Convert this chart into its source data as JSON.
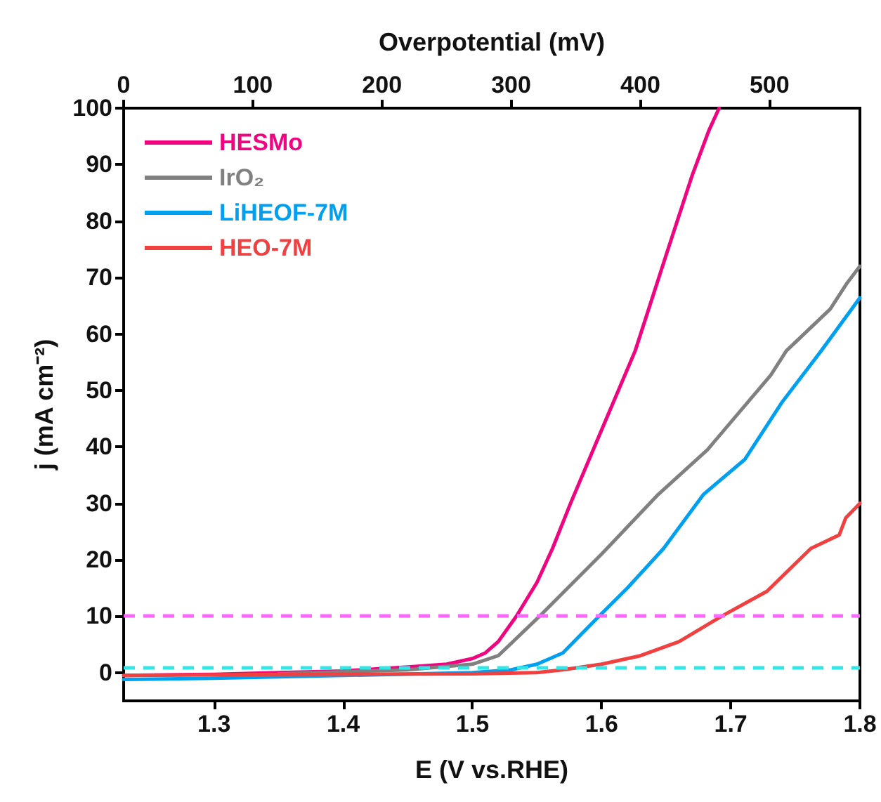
{
  "chart_data": {
    "type": "line",
    "xlabel": "E (V vs.RHE)",
    "ylabel": "j (mA cm⁻²)",
    "x2label": "Overpotential (mV)",
    "xlim": [
      1.23,
      1.8
    ],
    "xticks": [
      1.3,
      1.4,
      1.5,
      1.6,
      1.7,
      1.8
    ],
    "ylim": [
      -5,
      100
    ],
    "yticks": [
      0,
      10,
      20,
      30,
      40,
      50,
      60,
      70,
      80,
      90,
      100
    ],
    "x2lim": [
      0,
      570
    ],
    "x2ticks": [
      0,
      100,
      200,
      300,
      400,
      500
    ],
    "grid": false,
    "legend": "top left",
    "marker": "none",
    "line_style": "solid",
    "series": [
      {
        "name": "HESMo",
        "color": "#f0047f",
        "x": [
          1.23,
          1.3,
          1.35,
          1.4,
          1.45,
          1.48,
          1.5,
          1.51,
          1.52,
          1.534,
          1.55,
          1.562,
          1.576,
          1.6,
          1.626,
          1.65,
          1.67,
          1.683,
          1.691
        ],
        "values": [
          -0.5,
          -0.3,
          0,
          0.3,
          1.0,
          1.5,
          2.5,
          3.5,
          5.5,
          10,
          16,
          22,
          30,
          43,
          57,
          74,
          88,
          96,
          100
        ]
      },
      {
        "name": "IrO₂",
        "color": "#808080",
        "x": [
          1.35,
          1.45,
          1.5,
          1.52,
          1.552,
          1.6,
          1.644,
          1.682,
          1.731,
          1.743,
          1.777,
          1.79,
          1.8
        ],
        "values": [
          -0.2,
          0.5,
          1.5,
          3,
          10,
          21,
          31.6,
          39.5,
          52.7,
          57,
          64.4,
          69,
          72
        ]
      },
      {
        "name": "LiHEOF-7M",
        "color": "#00a0f0",
        "x": [
          1.23,
          1.3,
          1.4,
          1.5,
          1.53,
          1.55,
          1.57,
          1.598,
          1.62,
          1.648,
          1.679,
          1.711,
          1.74,
          1.77,
          1.8
        ],
        "values": [
          -1.2,
          -1,
          -0.5,
          0,
          0.5,
          1.5,
          3.5,
          10,
          15,
          22,
          31.6,
          37.8,
          48,
          57,
          66.4
        ]
      },
      {
        "name": "HEO-7M",
        "color": "#f04040",
        "x": [
          1.23,
          1.35,
          1.5,
          1.55,
          1.57,
          1.6,
          1.63,
          1.66,
          1.693,
          1.728,
          1.762,
          1.784,
          1.789,
          1.8
        ],
        "values": [
          -0.5,
          -0.3,
          -0.2,
          0,
          0.5,
          1.5,
          3,
          5.5,
          10,
          14.4,
          22,
          24.4,
          27.4,
          30
        ]
      }
    ],
    "ref_lines": [
      {
        "axis": "y",
        "value": 10,
        "color": "#ff66ff",
        "line_style": "dashed"
      },
      {
        "axis": "y",
        "value": 1,
        "color": "#33e6e6",
        "line_style": "dashed"
      }
    ]
  }
}
